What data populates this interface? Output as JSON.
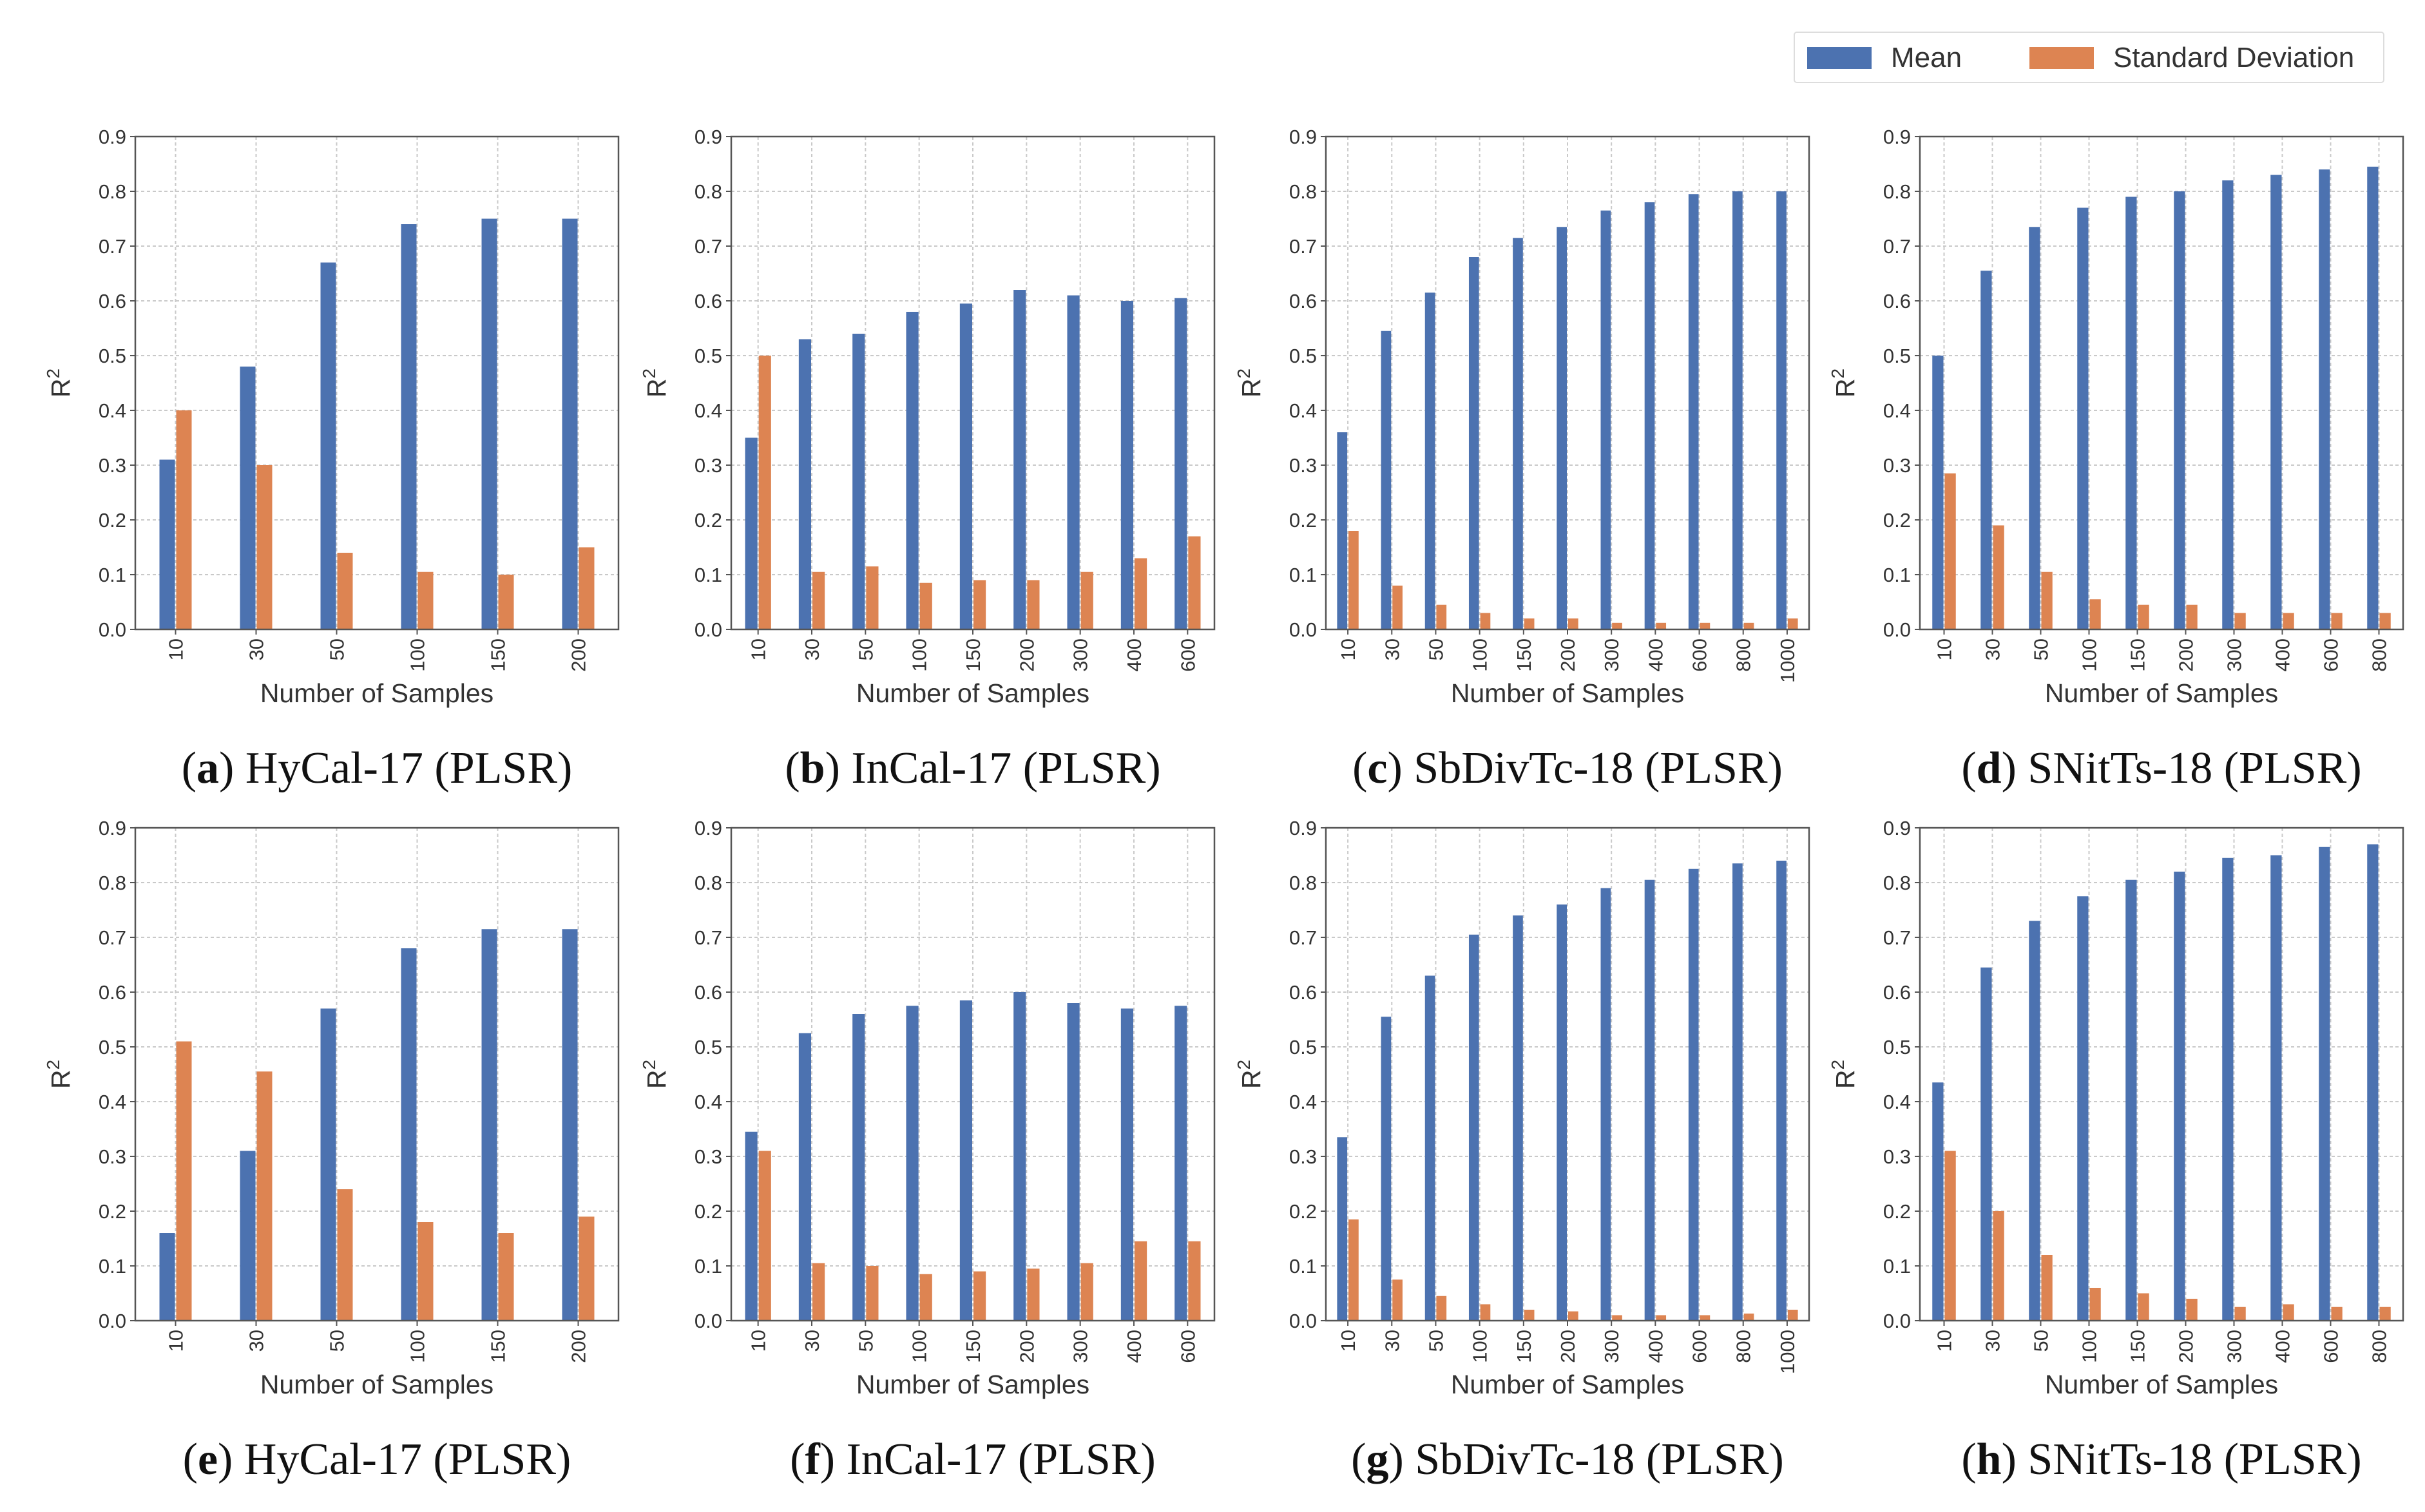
{
  "colors": {
    "mean": "#4c72b0",
    "std": "#dd8452"
  },
  "legend": {
    "mean_label": "Mean",
    "std_label": "Standard Deviation"
  },
  "chart_data": [
    {
      "type": "bar",
      "caption_letter": "a",
      "caption_text": " HyCal-17 (PLSR)",
      "xlabel": "Number of Samples",
      "ylabel": "R",
      "ylabel_sup": "2",
      "ylim": [
        0,
        0.9
      ],
      "yticks": [
        "0.0",
        "0.1",
        "0.2",
        "0.3",
        "0.4",
        "0.5",
        "0.6",
        "0.7",
        "0.8",
        "0.9"
      ],
      "categories": [
        "10",
        "30",
        "50",
        "100",
        "150",
        "200"
      ],
      "series": [
        {
          "name": "Mean",
          "values": [
            0.31,
            0.48,
            0.67,
            0.74,
            0.75,
            0.75
          ]
        },
        {
          "name": "Standard Deviation",
          "values": [
            0.4,
            0.3,
            0.14,
            0.105,
            0.1,
            0.15
          ]
        }
      ]
    },
    {
      "type": "bar",
      "caption_letter": "b",
      "caption_text": " InCal-17 (PLSR)",
      "xlabel": "Number of Samples",
      "ylabel": "R",
      "ylabel_sup": "2",
      "ylim": [
        0,
        0.9
      ],
      "yticks": [
        "0.0",
        "0.1",
        "0.2",
        "0.3",
        "0.4",
        "0.5",
        "0.6",
        "0.7",
        "0.8",
        "0.9"
      ],
      "categories": [
        "10",
        "30",
        "50",
        "100",
        "150",
        "200",
        "300",
        "400",
        "600"
      ],
      "series": [
        {
          "name": "Mean",
          "values": [
            0.35,
            0.53,
            0.54,
            0.58,
            0.595,
            0.62,
            0.61,
            0.6,
            0.605
          ]
        },
        {
          "name": "Standard Deviation",
          "values": [
            0.5,
            0.105,
            0.115,
            0.085,
            0.09,
            0.09,
            0.105,
            0.13,
            0.17
          ]
        }
      ]
    },
    {
      "type": "bar",
      "caption_letter": "c",
      "caption_text": " SbDivTc-18 (PLSR)",
      "xlabel": "Number of Samples",
      "ylabel": "R",
      "ylabel_sup": "2",
      "ylim": [
        0,
        0.9
      ],
      "yticks": [
        "0.0",
        "0.1",
        "0.2",
        "0.3",
        "0.4",
        "0.5",
        "0.6",
        "0.7",
        "0.8",
        "0.9"
      ],
      "categories": [
        "10",
        "30",
        "50",
        "100",
        "150",
        "200",
        "300",
        "400",
        "600",
        "800",
        "1000"
      ],
      "series": [
        {
          "name": "Mean",
          "values": [
            0.36,
            0.545,
            0.615,
            0.68,
            0.715,
            0.735,
            0.765,
            0.78,
            0.795,
            0.8,
            0.8
          ]
        },
        {
          "name": "Standard Deviation",
          "values": [
            0.18,
            0.08,
            0.045,
            0.03,
            0.02,
            0.02,
            0.012,
            0.012,
            0.012,
            0.012,
            0.02
          ]
        }
      ]
    },
    {
      "type": "bar",
      "caption_letter": "d",
      "caption_text": " SNitTs-18 (PLSR)",
      "xlabel": "Number of Samples",
      "ylabel": "R",
      "ylabel_sup": "2",
      "ylim": [
        0,
        0.9
      ],
      "yticks": [
        "0.0",
        "0.1",
        "0.2",
        "0.3",
        "0.4",
        "0.5",
        "0.6",
        "0.7",
        "0.8",
        "0.9"
      ],
      "categories": [
        "10",
        "30",
        "50",
        "100",
        "150",
        "200",
        "300",
        "400",
        "600",
        "800"
      ],
      "series": [
        {
          "name": "Mean",
          "values": [
            0.5,
            0.655,
            0.735,
            0.77,
            0.79,
            0.8,
            0.82,
            0.83,
            0.84,
            0.845
          ]
        },
        {
          "name": "Standard Deviation",
          "values": [
            0.285,
            0.19,
            0.105,
            0.055,
            0.045,
            0.045,
            0.03,
            0.03,
            0.03,
            0.03
          ]
        }
      ]
    },
    {
      "type": "bar",
      "caption_letter": "e",
      "caption_text": " HyCal-17 (PLSR)",
      "xlabel": "Number of Samples",
      "ylabel": "R",
      "ylabel_sup": "2",
      "ylim": [
        0,
        0.9
      ],
      "yticks": [
        "0.0",
        "0.1",
        "0.2",
        "0.3",
        "0.4",
        "0.5",
        "0.6",
        "0.7",
        "0.8",
        "0.9"
      ],
      "categories": [
        "10",
        "30",
        "50",
        "100",
        "150",
        "200"
      ],
      "series": [
        {
          "name": "Mean",
          "values": [
            0.16,
            0.31,
            0.57,
            0.68,
            0.715,
            0.715
          ]
        },
        {
          "name": "Standard Deviation",
          "values": [
            0.51,
            0.455,
            0.24,
            0.18,
            0.16,
            0.19
          ]
        }
      ]
    },
    {
      "type": "bar",
      "caption_letter": "f",
      "caption_text": " InCal-17 (PLSR)",
      "xlabel": "Number of Samples",
      "ylabel": "R",
      "ylabel_sup": "2",
      "ylim": [
        0,
        0.9
      ],
      "yticks": [
        "0.0",
        "0.1",
        "0.2",
        "0.3",
        "0.4",
        "0.5",
        "0.6",
        "0.7",
        "0.8",
        "0.9"
      ],
      "categories": [
        "10",
        "30",
        "50",
        "100",
        "150",
        "200",
        "300",
        "400",
        "600"
      ],
      "series": [
        {
          "name": "Mean",
          "values": [
            0.345,
            0.525,
            0.56,
            0.575,
            0.585,
            0.6,
            0.58,
            0.57,
            0.575
          ]
        },
        {
          "name": "Standard Deviation",
          "values": [
            0.31,
            0.105,
            0.1,
            0.085,
            0.09,
            0.095,
            0.105,
            0.145,
            0.145
          ]
        }
      ]
    },
    {
      "type": "bar",
      "caption_letter": "g",
      "caption_text": " SbDivTc-18 (PLSR)",
      "xlabel": "Number of Samples",
      "ylabel": "R",
      "ylabel_sup": "2",
      "ylim": [
        0,
        0.9
      ],
      "yticks": [
        "0.0",
        "0.1",
        "0.2",
        "0.3",
        "0.4",
        "0.5",
        "0.6",
        "0.7",
        "0.8",
        "0.9"
      ],
      "categories": [
        "10",
        "30",
        "50",
        "100",
        "150",
        "200",
        "300",
        "400",
        "600",
        "800",
        "1000"
      ],
      "series": [
        {
          "name": "Mean",
          "values": [
            0.335,
            0.555,
            0.63,
            0.705,
            0.74,
            0.76,
            0.79,
            0.805,
            0.825,
            0.835,
            0.84
          ]
        },
        {
          "name": "Standard Deviation",
          "values": [
            0.185,
            0.075,
            0.045,
            0.03,
            0.02,
            0.017,
            0.01,
            0.01,
            0.01,
            0.013,
            0.02
          ]
        }
      ]
    },
    {
      "type": "bar",
      "caption_letter": "h",
      "caption_text": " SNitTs-18 (PLSR)",
      "xlabel": "Number of Samples",
      "ylabel": "R",
      "ylabel_sup": "2",
      "ylim": [
        0,
        0.9
      ],
      "yticks": [
        "0.0",
        "0.1",
        "0.2",
        "0.3",
        "0.4",
        "0.5",
        "0.6",
        "0.7",
        "0.8",
        "0.9"
      ],
      "categories": [
        "10",
        "30",
        "50",
        "100",
        "150",
        "200",
        "300",
        "400",
        "600",
        "800"
      ],
      "series": [
        {
          "name": "Mean",
          "values": [
            0.435,
            0.645,
            0.73,
            0.775,
            0.805,
            0.82,
            0.845,
            0.85,
            0.865,
            0.87
          ]
        },
        {
          "name": "Standard Deviation",
          "values": [
            0.31,
            0.2,
            0.12,
            0.06,
            0.05,
            0.04,
            0.025,
            0.03,
            0.025,
            0.025
          ]
        }
      ]
    }
  ]
}
